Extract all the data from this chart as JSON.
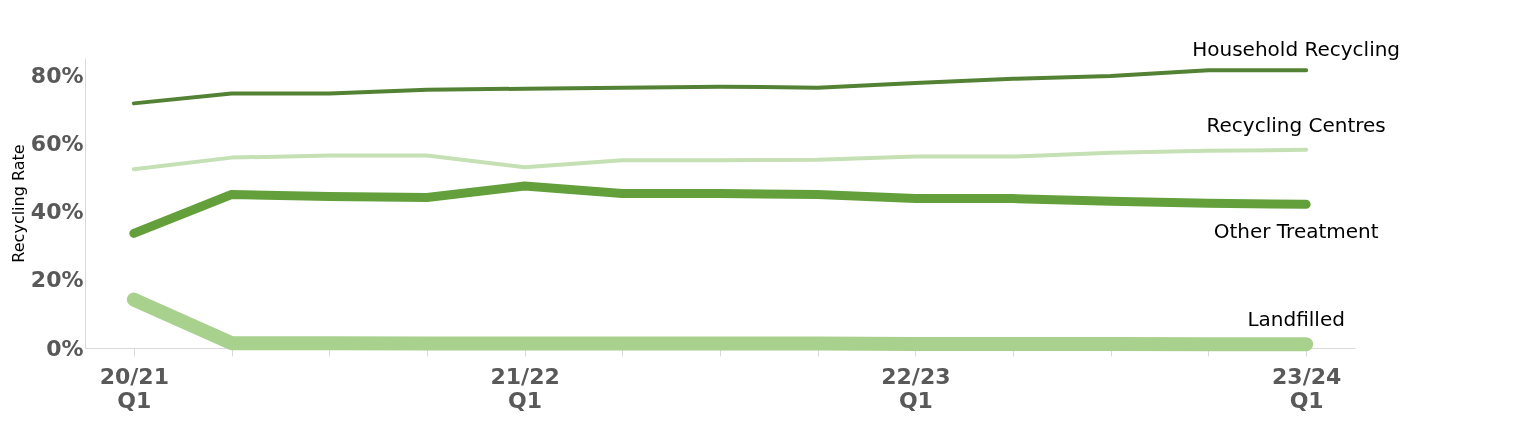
{
  "chart_data": {
    "type": "line",
    "ylabel": "Recycling Rate",
    "categories": [
      "20/21 Q1",
      null,
      null,
      null,
      "21/22 Q1",
      null,
      null,
      null,
      "22/23 Q1",
      null,
      null,
      null,
      "23/24 Q1"
    ],
    "ylim": [
      0,
      85
    ],
    "yticks": [
      {
        "value": 0,
        "label": "0%"
      },
      {
        "value": 20,
        "label": "20%"
      },
      {
        "value": 40,
        "label": "40%"
      },
      {
        "value": 60,
        "label": "60%"
      },
      {
        "value": 80,
        "label": "80%"
      }
    ],
    "grid": false,
    "marker": "none",
    "line_style": "solid",
    "series": [
      {
        "name": "Household Recycling",
        "color": "#548235",
        "values": [
          71.7,
          74.6,
          74.6,
          75.7,
          76,
          76.3,
          76.6,
          76.3,
          77.7,
          78.9,
          79.7,
          81.4,
          81.4
        ]
      },
      {
        "name": "Recycling Centres",
        "color": "#c5e0b4",
        "values": [
          52.4,
          55.8,
          56.4,
          56.4,
          53,
          55,
          55,
          55.2,
          56.1,
          56.1,
          57.2,
          57.8,
          58.1
        ]
      },
      {
        "name": "Other Treatment",
        "color": "#63a03c",
        "values": [
          33.6,
          45,
          44.4,
          44.1,
          47.5,
          45.3,
          45.3,
          45,
          43.8,
          43.8,
          43,
          42.4,
          42.1
        ]
      },
      {
        "name": "Landfilled",
        "color": "#a9d18e",
        "values": [
          14.2,
          1.4,
          1.4,
          1.3,
          1.3,
          1.3,
          1.3,
          1.3,
          1.2,
          1.2,
          1.2,
          1.1,
          1.1
        ]
      }
    ]
  }
}
